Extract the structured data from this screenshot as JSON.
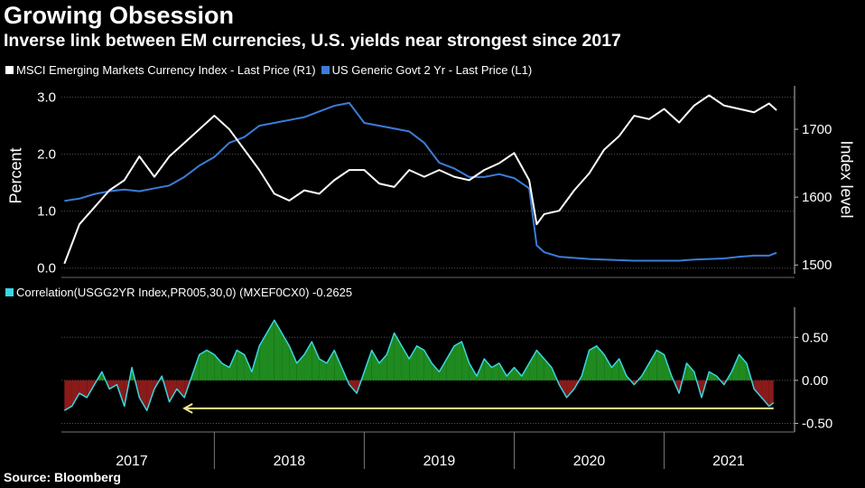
{
  "header": {
    "title": "Growing Obsession",
    "subtitle": "Inverse link between EM currencies, U.S. yields near strongest since 2017"
  },
  "legend": {
    "series1": "MSCI Emerging Markets Currency Index - Last Price (R1)",
    "series2": "US Generic Govt 2 Yr - Last Price (L1)",
    "series1_color": "#ffffff",
    "series2_color": "#3b7dd8"
  },
  "corr_legend": {
    "label": "Correlation(USGG2YR Index,PR005,30,0) (MXEF0CX0) -0.2625",
    "color": "#39d6e0"
  },
  "source": "Source: Bloomberg",
  "chart_data": [
    {
      "type": "line",
      "title": "Growing Obsession",
      "ylabel": "Percent",
      "y2label": "Index level",
      "ylim": [
        -0.1,
        3.2
      ],
      "y2lim": [
        1487,
        1764
      ],
      "yticks": [
        "0.0",
        "1.0",
        "2.0",
        "3.0"
      ],
      "y2ticks": [
        "1500",
        "1600",
        "1700"
      ],
      "x": [
        2017.0,
        2017.1,
        2017.2,
        2017.3,
        2017.4,
        2017.5,
        2017.6,
        2017.7,
        2017.8,
        2017.9,
        2018.0,
        2018.1,
        2018.2,
        2018.3,
        2018.4,
        2018.5,
        2018.6,
        2018.7,
        2018.8,
        2018.9,
        2019.0,
        2019.1,
        2019.2,
        2019.3,
        2019.4,
        2019.5,
        2019.6,
        2019.7,
        2019.8,
        2019.9,
        2020.0,
        2020.1,
        2020.15,
        2020.2,
        2020.3,
        2020.4,
        2020.5,
        2020.6,
        2020.7,
        2020.8,
        2020.9,
        2021.0,
        2021.1,
        2021.2,
        2021.3,
        2021.4,
        2021.5,
        2021.6,
        2021.7,
        2021.75
      ],
      "series": [
        {
          "name": "US Generic Govt 2 Yr - Last Price (L1)",
          "axis": "left",
          "values": [
            1.18,
            1.22,
            1.3,
            1.35,
            1.38,
            1.35,
            1.4,
            1.45,
            1.6,
            1.8,
            1.95,
            2.2,
            2.3,
            2.5,
            2.55,
            2.6,
            2.65,
            2.75,
            2.85,
            2.9,
            2.55,
            2.5,
            2.45,
            2.4,
            2.2,
            1.85,
            1.75,
            1.6,
            1.6,
            1.65,
            1.58,
            1.4,
            0.4,
            0.28,
            0.2,
            0.18,
            0.16,
            0.15,
            0.14,
            0.13,
            0.13,
            0.13,
            0.13,
            0.15,
            0.16,
            0.17,
            0.2,
            0.22,
            0.22,
            0.27
          ]
        },
        {
          "name": "MSCI Emerging Markets Currency Index - Last Price (R1)",
          "axis": "right",
          "values": [
            1502,
            1560,
            1585,
            1610,
            1625,
            1660,
            1630,
            1660,
            1680,
            1700,
            1720,
            1700,
            1670,
            1640,
            1605,
            1595,
            1610,
            1605,
            1625,
            1640,
            1640,
            1620,
            1615,
            1640,
            1630,
            1640,
            1630,
            1625,
            1640,
            1650,
            1665,
            1625,
            1560,
            1575,
            1580,
            1610,
            1635,
            1670,
            1690,
            1720,
            1715,
            1730,
            1710,
            1735,
            1750,
            1735,
            1730,
            1725,
            1738,
            1728
          ]
        }
      ]
    },
    {
      "type": "area",
      "title": "Correlation(USGG2YR Index,PR005,30,0) (MXEF0CX0) -0.2625",
      "ylim": [
        -0.6,
        0.85
      ],
      "yticks": [
        "0.50",
        "0.00",
        "-0.50"
      ],
      "xlabels": [
        "2017",
        "2018",
        "2019",
        "2020",
        "2021"
      ],
      "last_value": -0.2625,
      "x": [
        2017.0,
        2017.05,
        2017.1,
        2017.15,
        2017.2,
        2017.25,
        2017.3,
        2017.35,
        2017.4,
        2017.45,
        2017.5,
        2017.55,
        2017.6,
        2017.65,
        2017.7,
        2017.75,
        2017.8,
        2017.85,
        2017.9,
        2017.95,
        2018.0,
        2018.05,
        2018.1,
        2018.15,
        2018.2,
        2018.25,
        2018.3,
        2018.35,
        2018.4,
        2018.45,
        2018.5,
        2018.55,
        2018.6,
        2018.65,
        2018.7,
        2018.75,
        2018.8,
        2018.85,
        2018.9,
        2018.95,
        2019.0,
        2019.05,
        2019.1,
        2019.15,
        2019.2,
        2019.25,
        2019.3,
        2019.35,
        2019.4,
        2019.45,
        2019.5,
        2019.55,
        2019.6,
        2019.65,
        2019.7,
        2019.75,
        2019.8,
        2019.85,
        2019.9,
        2019.95,
        2020.0,
        2020.05,
        2020.1,
        2020.15,
        2020.2,
        2020.25,
        2020.3,
        2020.35,
        2020.4,
        2020.45,
        2020.5,
        2020.55,
        2020.6,
        2020.65,
        2020.7,
        2020.75,
        2020.8,
        2020.85,
        2020.9,
        2020.95,
        2021.0,
        2021.05,
        2021.1,
        2021.15,
        2021.2,
        2021.25,
        2021.3,
        2021.35,
        2021.4,
        2021.45,
        2021.5,
        2021.55,
        2021.6,
        2021.65,
        2021.7,
        2021.73
      ],
      "values": [
        -0.35,
        -0.3,
        -0.15,
        -0.2,
        -0.05,
        0.1,
        -0.1,
        -0.05,
        -0.3,
        0.15,
        -0.2,
        -0.35,
        -0.1,
        0.05,
        -0.25,
        -0.1,
        -0.2,
        0.05,
        0.3,
        0.35,
        0.3,
        0.2,
        0.15,
        0.35,
        0.3,
        0.1,
        0.4,
        0.55,
        0.7,
        0.55,
        0.4,
        0.2,
        0.3,
        0.45,
        0.25,
        0.2,
        0.35,
        0.15,
        -0.05,
        -0.15,
        0.1,
        0.35,
        0.2,
        0.3,
        0.55,
        0.4,
        0.25,
        0.4,
        0.35,
        0.2,
        0.1,
        0.25,
        0.4,
        0.45,
        0.2,
        0.05,
        0.25,
        0.15,
        0.2,
        0.05,
        0.15,
        0.05,
        0.2,
        0.35,
        0.25,
        0.15,
        -0.05,
        -0.2,
        -0.1,
        0.05,
        0.35,
        0.4,
        0.3,
        0.15,
        0.25,
        0.05,
        -0.05,
        0.05,
        0.2,
        0.35,
        0.3,
        0.05,
        -0.15,
        0.2,
        0.1,
        -0.2,
        0.1,
        0.05,
        -0.05,
        0.1,
        0.3,
        0.2,
        -0.1,
        -0.2,
        -0.3,
        -0.26
      ]
    }
  ]
}
